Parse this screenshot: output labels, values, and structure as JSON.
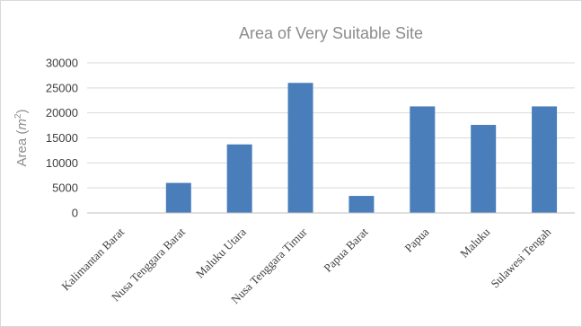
{
  "chart_data": {
    "type": "bar",
    "title": "Area of Very Suitable Site",
    "ylabel": "Area (m²)",
    "ylabel_base": "Area (",
    "ylabel_unit": "m",
    "ylabel_exp": "2",
    "ylabel_close": ")",
    "xlabel": "",
    "ylim": [
      0,
      30000
    ],
    "yticks": [
      "0",
      "5000",
      "10000",
      "15000",
      "20000",
      "25000",
      "30000"
    ],
    "grid": true,
    "legend": "none",
    "categories": [
      "Kalimantan Barat",
      "Nusa Tenggara Barat",
      "Maluku Utara",
      "Nusa Tenggara Timur",
      "Papua Barat",
      "Papua",
      "Maluku",
      "Sulawesi Tengah"
    ],
    "values": [
      0,
      6000,
      13700,
      26000,
      3400,
      21300,
      17600,
      21300
    ],
    "bar_color": "#4a7ebb"
  }
}
